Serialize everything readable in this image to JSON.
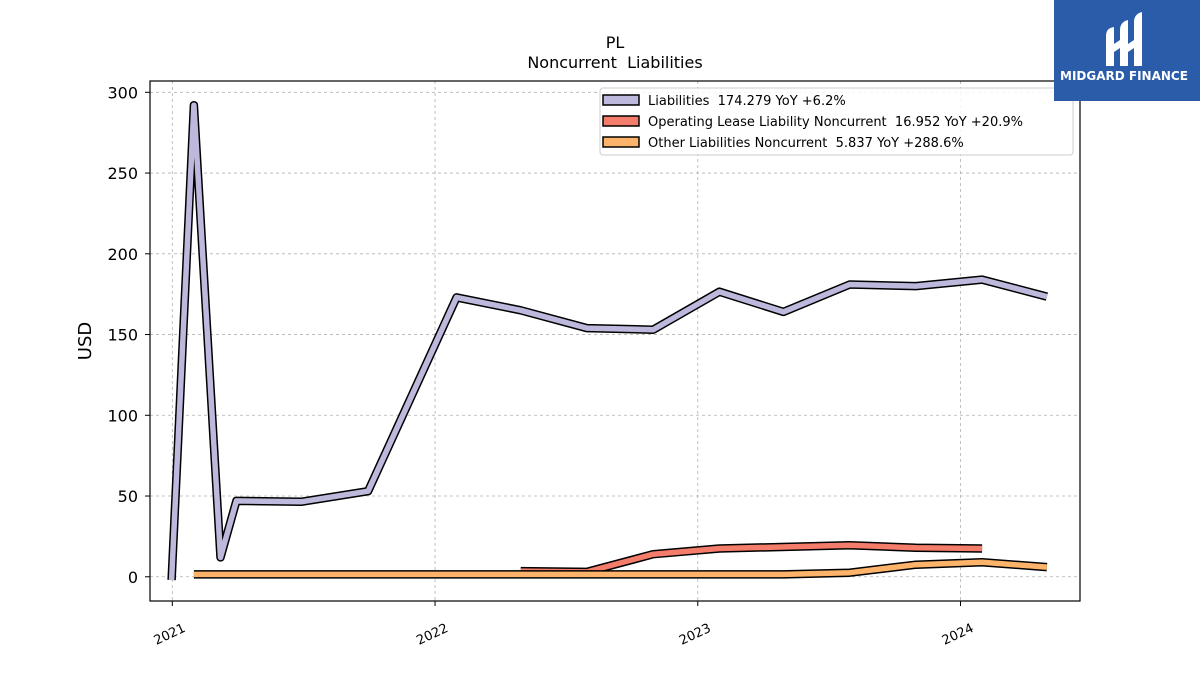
{
  "chart_data": {
    "type": "line",
    "title": "PL",
    "subtitle": "Noncurrent  Liabilities",
    "xlabel": "",
    "ylabel": "USD",
    "xlim": [
      "2020-12-01",
      "2024-06-15"
    ],
    "ylim": [
      -15,
      307
    ],
    "yticks": [
      0,
      50,
      100,
      150,
      200,
      250,
      300
    ],
    "xticks": [
      "2021-01-01",
      "2022-01-01",
      "2023-01-01",
      "2024-01-01"
    ],
    "xtick_labels": [
      "2021",
      "2022",
      "2023",
      "2024"
    ],
    "grid": true,
    "legend_position": "top-right",
    "series": [
      {
        "name": "Liabilities  174.279 YoY +6.2%",
        "color": "#bcb9dc",
        "points": [
          [
            "2020-12-31",
            -2
          ],
          [
            "2021-01-31",
            292
          ],
          [
            "2021-03-09",
            12
          ],
          [
            "2021-03-31",
            47
          ],
          [
            "2021-06-30",
            46.5
          ],
          [
            "2021-09-30",
            53
          ],
          [
            "2022-01-31",
            173
          ],
          [
            "2022-04-30",
            165
          ],
          [
            "2022-07-31",
            154
          ],
          [
            "2022-10-31",
            153
          ],
          [
            "2023-01-31",
            176.5
          ],
          [
            "2023-04-30",
            164
          ],
          [
            "2023-07-31",
            181
          ],
          [
            "2023-10-31",
            180
          ],
          [
            "2024-01-31",
            184
          ],
          [
            "2024-04-30",
            173.5
          ]
        ]
      },
      {
        "name": "Operating Lease Liability Noncurrent  16.952 YoY +20.9%",
        "color": "#f47c6a",
        "points": [
          [
            "2022-04-30",
            3.5
          ],
          [
            "2022-07-31",
            3
          ],
          [
            "2022-10-31",
            14
          ],
          [
            "2023-01-31",
            17.5
          ],
          [
            "2023-07-31",
            19.5
          ],
          [
            "2023-10-31",
            18
          ],
          [
            "2024-01-31",
            17.5
          ]
        ]
      },
      {
        "name": "Other Liabilities Noncurrent  5.837 YoY +288.6%",
        "color": "#fdb46a",
        "points": [
          [
            "2021-01-31",
            1.5
          ],
          [
            "2022-01-31",
            1.5
          ],
          [
            "2022-10-31",
            1.5
          ],
          [
            "2023-04-30",
            1.5
          ],
          [
            "2023-07-31",
            2.5
          ],
          [
            "2023-10-31",
            7.5
          ],
          [
            "2024-01-31",
            9
          ],
          [
            "2024-04-30",
            6
          ]
        ]
      }
    ]
  },
  "logo": {
    "text": "MIDGARD FINANCE",
    "background": "#2a5caa"
  }
}
